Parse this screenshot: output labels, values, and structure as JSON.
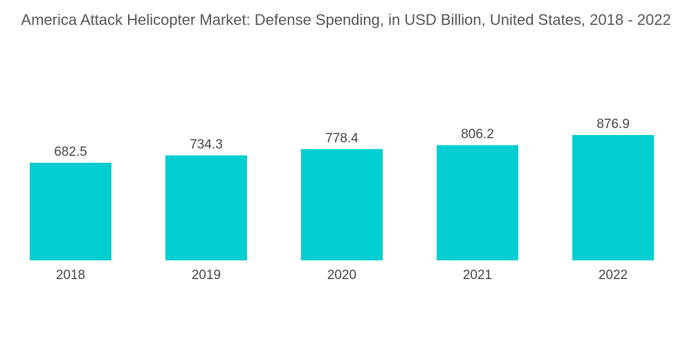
{
  "chart_data": {
    "type": "bar",
    "title": "America Attack Helicopter Market: Defense Spending, in USD Billion, United States, 2018 - 2022",
    "categories": [
      "2018",
      "2019",
      "2020",
      "2021",
      "2022"
    ],
    "values": [
      682.5,
      734.3,
      778.4,
      806.2,
      876.9
    ],
    "value_labels": [
      "682.5",
      "734.3",
      "778.4",
      "806.2",
      "876.9"
    ],
    "xlabel": "",
    "ylabel": "",
    "ylim": [
      0,
      876.9
    ],
    "grid": false,
    "legend": "none",
    "bar_color": "#00CED1"
  }
}
